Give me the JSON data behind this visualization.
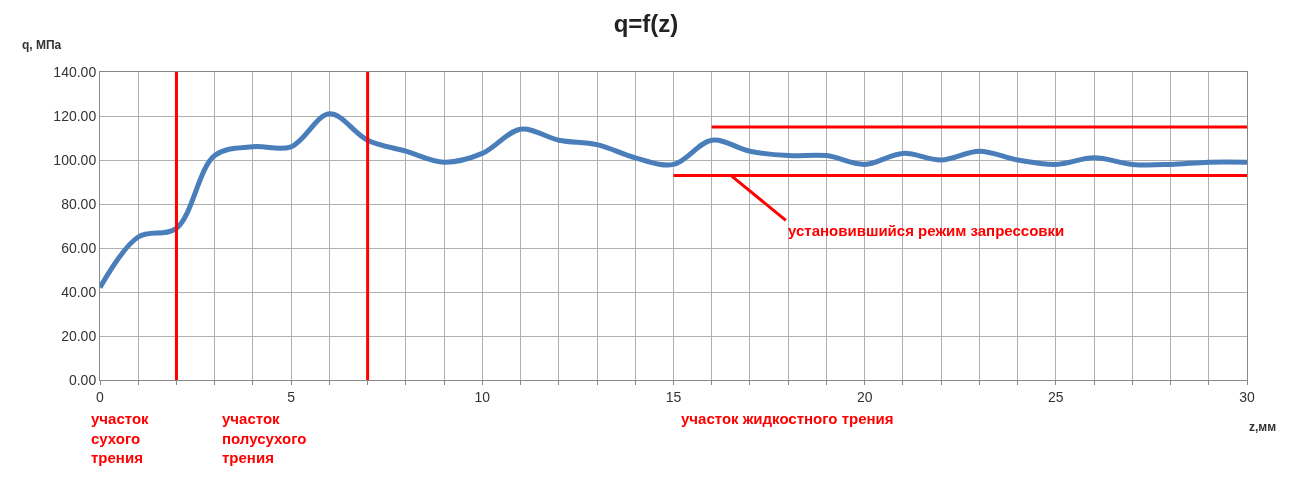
{
  "chart_data": {
    "type": "line",
    "title": "q=f(z)",
    "xlabel": "z,мм",
    "ylabel": "q, МПа",
    "x": [
      0,
      1,
      2,
      3,
      4,
      5,
      6,
      7,
      8,
      9,
      10,
      11,
      12,
      13,
      14,
      15,
      16,
      17,
      18,
      19,
      20,
      21,
      22,
      23,
      24,
      25,
      26,
      27,
      28,
      29,
      30
    ],
    "series": [
      {
        "color": "#4a7ebb",
        "values": [
          42,
          65,
          69,
          102,
          106,
          106,
          121,
          109,
          104,
          99,
          103,
          114,
          109,
          107,
          101,
          98,
          109,
          104,
          102,
          102,
          98,
          103,
          100,
          104,
          100,
          98,
          101,
          98,
          98,
          99,
          99
        ]
      },
      {
        "color": "#ff0000",
        "type": "line",
        "x": [
          16,
          30
        ],
        "values": [
          115,
          115
        ]
      },
      {
        "color": "#ff0000",
        "type": "line",
        "x": [
          15,
          30
        ],
        "values": [
          93,
          93
        ]
      }
    ],
    "ref_lines": [
      {
        "axis": "x",
        "value": 2,
        "color": "#ff0000"
      },
      {
        "axis": "x",
        "value": 7,
        "color": "#ff0000"
      }
    ],
    "annotations": [
      {
        "text": "установившийся режим запрессовки",
        "x": 16.5,
        "y": 93
      },
      "участок\nсухого\nтрения",
      "участок\nполусухого\nтрения",
      "участок жидкостного трения"
    ],
    "xlim": [
      0,
      30
    ],
    "xticks": [
      0,
      {
        "value": 1,
        "label": null
      },
      {
        "value": 2,
        "label": null
      },
      {
        "value": 3,
        "label": null
      },
      {
        "value": 4,
        "label": null
      },
      5,
      {
        "value": 6,
        "label": null
      },
      {
        "value": 7,
        "label": null
      },
      {
        "value": 8,
        "label": null
      },
      {
        "value": 9,
        "label": null
      },
      10,
      {
        "value": 11,
        "label": null
      },
      {
        "value": 12,
        "label": null
      },
      {
        "value": 13,
        "label": null
      },
      {
        "value": 14,
        "label": null
      },
      15,
      {
        "value": 16,
        "label": null
      },
      {
        "value": 17,
        "label": null
      },
      {
        "value": 18,
        "label": null
      },
      {
        "value": 19,
        "label": null
      },
      20,
      {
        "value": 21,
        "label": null
      },
      {
        "value": 22,
        "label": null
      },
      {
        "value": 23,
        "label": null
      },
      {
        "value": 24,
        "label": null
      },
      25,
      {
        "value": 26,
        "label": null
      },
      {
        "value": 27,
        "label": null
      },
      {
        "value": 28,
        "label": null
      },
      {
        "value": 29,
        "label": null
      },
      30
    ],
    "ylim": [
      0,
      140
    ],
    "yticks": [
      {
        "value": 0,
        "label": "0.00"
      },
      {
        "value": 20,
        "label": "20.00"
      },
      {
        "value": 40,
        "label": "40.00"
      },
      {
        "value": 60,
        "label": "60.00"
      },
      {
        "value": 80,
        "label": "80.00"
      },
      {
        "value": 100,
        "label": "100.00"
      },
      {
        "value": 120,
        "label": "120.00"
      },
      {
        "value": 140,
        "label": "140.00"
      }
    ],
    "grid": true,
    "marker": "none",
    "line_style": "solid"
  }
}
